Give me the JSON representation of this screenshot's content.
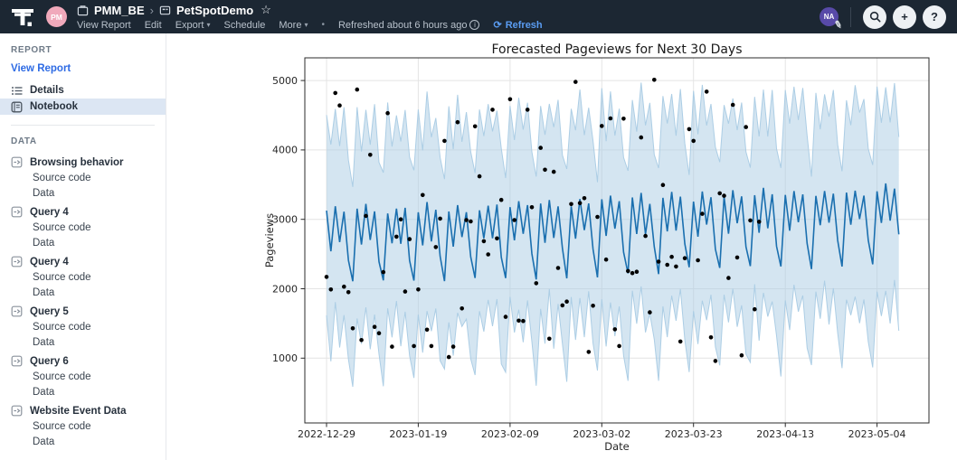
{
  "topbar": {
    "owner_initials": "PM",
    "workspace": "PMM_BE",
    "separator": "›",
    "title": "PetSpotDemo",
    "star": "☆",
    "menu": {
      "view_report": "View Report",
      "edit": "Edit",
      "export": "Export",
      "schedule": "Schedule",
      "more": "More"
    },
    "caret": "▾",
    "dot": "•",
    "refreshed": "Refreshed about 6 hours ago",
    "info_glyph": "i",
    "refresh_glyph": "⟳",
    "refresh": "Refresh",
    "user_initials": "NA",
    "pencil_glyph": "✎",
    "plus_glyph": "+",
    "help_glyph": "?",
    "colors": {
      "bar_bg": "#1c2733",
      "refresh_blue": "#5a9cf2",
      "owner_avatar": "#f0a9bb",
      "user_avatar": "#584aa8"
    }
  },
  "sidebar": {
    "report_header": "REPORT",
    "view_report_link": "View Report",
    "details": "Details",
    "notebook": "Notebook",
    "data_header": "DATA",
    "groups": [
      {
        "name": "Browsing behavior",
        "items": [
          "Source code",
          "Data"
        ]
      },
      {
        "name": "Query 4",
        "items": [
          "Source code",
          "Data"
        ]
      },
      {
        "name": "Query 4",
        "items": [
          "Source code",
          "Data"
        ]
      },
      {
        "name": "Query 5",
        "items": [
          "Source code",
          "Data"
        ]
      },
      {
        "name": "Query 6",
        "items": [
          "Source code",
          "Data"
        ]
      },
      {
        "name": "Website Event Data",
        "items": [
          "Source code",
          "Data"
        ]
      }
    ],
    "colors": {
      "selected_bg": "#dce6f3",
      "link_blue": "#2e6be4"
    }
  },
  "chart_data": {
    "type": "line",
    "title": "Forecasted Pageviews for Next 30 Days",
    "xlabel": "Date",
    "ylabel": "Pageviews",
    "x_tick_labels": [
      "2022-12-29",
      "2023-01-19",
      "2023-02-09",
      "2023-03-02",
      "2023-03-23",
      "2023-04-13",
      "2023-05-04"
    ],
    "x_tick_days": [
      0,
      21,
      42,
      63,
      84,
      105,
      126
    ],
    "y_ticks": [
      1000,
      2000,
      3000,
      4000,
      5000
    ],
    "ylim": [
      66,
      5325
    ],
    "grid": true,
    "legend": "none",
    "series_days": {
      "start": 0,
      "end": 131
    },
    "forecast_model": {
      "comment": "Prophet-style forecast: yhat line with weekly seasonality plus uncertainty band",
      "trend_start": 2720,
      "trend_end": 3060,
      "weekly_offsets": [
        370,
        -140,
        430,
        -70,
        350,
        -330,
        -680
      ],
      "upper_offset": 1460,
      "lower_offset": 1430,
      "line_jitter": 55,
      "upper_jitter": 140,
      "lower_jitter": 170
    },
    "scatter_name": "observed pageviews (black dots, history ends ~30 days before series end)",
    "scatter": [
      [
        0,
        2170
      ],
      [
        1,
        1990
      ],
      [
        2,
        4820
      ],
      [
        3,
        4640
      ],
      [
        4,
        2030
      ],
      [
        5,
        1950
      ],
      [
        6,
        1430
      ],
      [
        7,
        4870
      ],
      [
        8,
        1260
      ],
      [
        9,
        3050
      ],
      [
        10,
        3930
      ],
      [
        11,
        1450
      ],
      [
        12,
        1360
      ],
      [
        13,
        2240
      ],
      [
        14,
        4530
      ],
      [
        15,
        1165
      ],
      [
        16,
        2750
      ],
      [
        17,
        3000
      ],
      [
        18,
        1960
      ],
      [
        19,
        2715
      ],
      [
        20,
        1175
      ],
      [
        21,
        1990
      ],
      [
        22,
        3350
      ],
      [
        23,
        1410
      ],
      [
        24,
        1175
      ],
      [
        25,
        2600
      ],
      [
        26,
        3010
      ],
      [
        27,
        4130
      ],
      [
        28,
        1015
      ],
      [
        29,
        1165
      ],
      [
        30,
        4400
      ],
      [
        31,
        1716
      ],
      [
        32,
        2990
      ],
      [
        33,
        2970
      ],
      [
        34,
        4340
      ],
      [
        35,
        3620
      ],
      [
        36,
        2685
      ],
      [
        37,
        2495
      ],
      [
        38,
        4580
      ],
      [
        39,
        2725
      ],
      [
        40,
        3280
      ],
      [
        41,
        1595
      ],
      [
        42,
        4730
      ],
      [
        43,
        2990
      ],
      [
        44,
        1540
      ],
      [
        45,
        1535
      ],
      [
        46,
        4580
      ],
      [
        47,
        3175
      ],
      [
        48,
        2080
      ],
      [
        49,
        4030
      ],
      [
        50,
        3715
      ],
      [
        51,
        1280
      ],
      [
        52,
        3685
      ],
      [
        53,
        2300
      ],
      [
        54,
        1760
      ],
      [
        55,
        1815
      ],
      [
        56,
        3220
      ],
      [
        57,
        4980
      ],
      [
        58,
        3235
      ],
      [
        59,
        3305
      ],
      [
        60,
        1090
      ],
      [
        61,
        1755
      ],
      [
        62,
        3035
      ],
      [
        63,
        4345
      ],
      [
        64,
        2420
      ],
      [
        65,
        4455
      ],
      [
        66,
        1415
      ],
      [
        67,
        1175
      ],
      [
        68,
        4450
      ],
      [
        69,
        2255
      ],
      [
        70,
        2225
      ],
      [
        71,
        2245
      ],
      [
        72,
        4180
      ],
      [
        73,
        2760
      ],
      [
        74,
        1660
      ],
      [
        75,
        5010
      ],
      [
        76,
        2390
      ],
      [
        77,
        3495
      ],
      [
        78,
        2345
      ],
      [
        79,
        2460
      ],
      [
        80,
        2320
      ],
      [
        81,
        1240
      ],
      [
        82,
        2440
      ],
      [
        83,
        4300
      ],
      [
        84,
        4130
      ],
      [
        85,
        2410
      ],
      [
        86,
        3080
      ],
      [
        87,
        4840
      ],
      [
        88,
        1300
      ],
      [
        89,
        960
      ],
      [
        90,
        3375
      ],
      [
        91,
        3340
      ],
      [
        92,
        2155
      ],
      [
        93,
        4650
      ],
      [
        94,
        2450
      ],
      [
        95,
        1040
      ],
      [
        96,
        4330
      ],
      [
        97,
        2985
      ],
      [
        98,
        1705
      ],
      [
        99,
        2965
      ]
    ],
    "line_color": "#1a6faf",
    "band_color": "#a9cbe4",
    "band_opacity": 0.5,
    "dot_color": "#000000",
    "grid_color": "#e4e4e4",
    "spine_color": "#2b2b2b"
  }
}
